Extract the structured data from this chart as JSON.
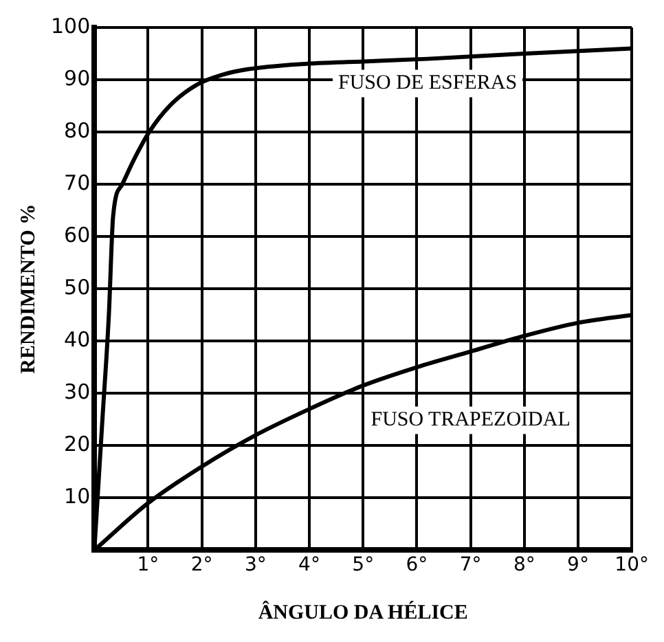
{
  "chart_data": {
    "type": "line",
    "xlabel": "ÂNGULO DA HÉLICE",
    "ylabel": "RENDIMENTO %",
    "xlim": [
      0,
      10
    ],
    "xticks": [
      {
        "value": 0,
        "label": null
      },
      {
        "value": 1,
        "label": "1°"
      },
      {
        "value": 2,
        "label": "2°"
      },
      {
        "value": 3,
        "label": "3°"
      },
      {
        "value": 4,
        "label": "4°"
      },
      {
        "value": 5,
        "label": "5°"
      },
      {
        "value": 6,
        "label": "6°"
      },
      {
        "value": 7,
        "label": "7°"
      },
      {
        "value": 8,
        "label": "8°"
      },
      {
        "value": 9,
        "label": "9°"
      },
      {
        "value": 10,
        "label": "10°"
      }
    ],
    "ylim": [
      0,
      100
    ],
    "yticks": [
      {
        "value": 0,
        "label": null
      },
      10,
      20,
      30,
      40,
      50,
      60,
      70,
      80,
      90,
      100
    ],
    "grid": true,
    "legend": false,
    "marker": "none",
    "line_style": "solid",
    "series": [
      {
        "name": "FUSO DE ESFERAS",
        "color": "#000000",
        "x": [
          0,
          0.15,
          0.27,
          0.35,
          0.52,
          0.75,
          1.02,
          1.4,
          1.9,
          2.4,
          2.85,
          3.85,
          5,
          6.2,
          8,
          10
        ],
        "values": [
          0,
          25,
          45,
          64,
          70,
          75,
          80,
          85,
          89,
          91,
          92,
          93,
          93.5,
          94,
          95,
          96
        ]
      },
      {
        "name": "FUSO TRAPEZOIDAL",
        "color": "#000000",
        "x": [
          0,
          1,
          2,
          3,
          4,
          5,
          6,
          7,
          8,
          9,
          10
        ],
        "values": [
          0,
          9,
          16,
          22,
          27,
          31.5,
          35,
          38,
          41,
          43.5,
          45
        ]
      }
    ]
  }
}
